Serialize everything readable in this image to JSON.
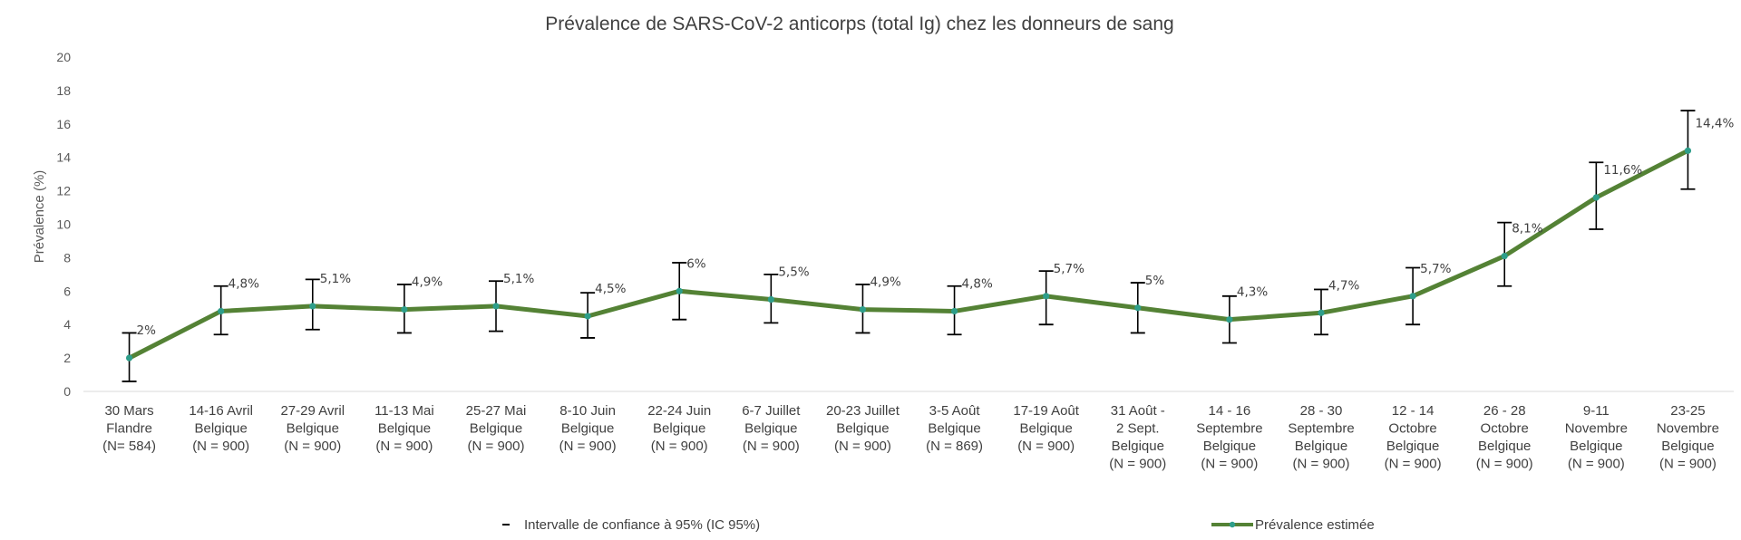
{
  "chart_data": {
    "type": "line",
    "title": "Prévalence de SARS-CoV-2 anticorps (total Ig) chez les donneurs de sang",
    "ylabel": "Prévalence (%)",
    "xlabel": "",
    "ylim": [
      0,
      20
    ],
    "yticks": [
      "0",
      "2",
      "4",
      "6",
      "8",
      "10",
      "12",
      "14",
      "16",
      "18",
      "20"
    ],
    "grid": false,
    "legend_position": "bottom",
    "colors": {
      "line": "#548235",
      "marker": "#2e9e8a",
      "errorbar": "#000000",
      "text": "#404040"
    },
    "categories": [
      [
        "30 Mars",
        "Flandre",
        "(N= 584)"
      ],
      [
        "14-16 Avril",
        "Belgique",
        "(N = 900)"
      ],
      [
        "27-29 Avril",
        "Belgique",
        "(N = 900)"
      ],
      [
        "11-13 Mai",
        "Belgique",
        "(N = 900)"
      ],
      [
        "25-27 Mai",
        "Belgique",
        "(N = 900)"
      ],
      [
        "8-10 Juin",
        "Belgique",
        "(N = 900)"
      ],
      [
        "22-24 Juin",
        "Belgique",
        "(N = 900)"
      ],
      [
        "6-7 Juillet",
        "Belgique",
        "(N = 900)"
      ],
      [
        "20-23 Juillet",
        "Belgique",
        "(N = 900)"
      ],
      [
        "3-5 Août",
        "Belgique",
        "(N = 869)"
      ],
      [
        "17-19 Août",
        "Belgique",
        "(N = 900)"
      ],
      [
        "31 Août -",
        "2 Sept.",
        "Belgique",
        "(N = 900)"
      ],
      [
        "14 - 16",
        "Septembre",
        "Belgique",
        "(N = 900)"
      ],
      [
        "28 - 30",
        "Septembre",
        "Belgique",
        "(N = 900)"
      ],
      [
        "12 - 14",
        "Octobre",
        "Belgique",
        "(N = 900)"
      ],
      [
        "26 - 28",
        "Octobre",
        "Belgique",
        "(N = 900)"
      ],
      [
        "9-11",
        "Novembre",
        "Belgique",
        "(N = 900)"
      ],
      [
        "23-25",
        "Novembre",
        "Belgique",
        "(N = 900)"
      ]
    ],
    "series": [
      {
        "name": "Prévalence estimée",
        "values": [
          2.0,
          4.8,
          5.1,
          4.9,
          5.1,
          4.5,
          6.0,
          5.5,
          4.9,
          4.8,
          5.7,
          5.0,
          4.3,
          4.7,
          5.7,
          8.1,
          11.6,
          14.4
        ],
        "labels": [
          "2%",
          "4,8%",
          "5,1%",
          "4,9%",
          "5,1%",
          "4,5%",
          "6%",
          "5,5%",
          "4,9%",
          "4,8%",
          "5,7%",
          "5%",
          "4,3%",
          "4,7%",
          "5,7%",
          "8,1%",
          "11,6%",
          "14,4%"
        ],
        "ci_low": [
          0.6,
          3.4,
          3.7,
          3.5,
          3.6,
          3.2,
          4.3,
          4.1,
          3.5,
          3.4,
          4.0,
          3.5,
          2.9,
          3.4,
          4.0,
          6.3,
          9.7,
          12.1
        ],
        "ci_high": [
          3.5,
          6.3,
          6.7,
          6.4,
          6.6,
          5.9,
          7.7,
          7.0,
          6.4,
          6.3,
          7.2,
          6.5,
          5.7,
          6.1,
          7.4,
          10.1,
          13.7,
          16.8
        ]
      }
    ],
    "legend": [
      {
        "name": "Intervalle de confiance à 95% (IC 95%)",
        "kind": "errorbar"
      },
      {
        "name": "Prévalence estimée",
        "kind": "line"
      }
    ]
  }
}
